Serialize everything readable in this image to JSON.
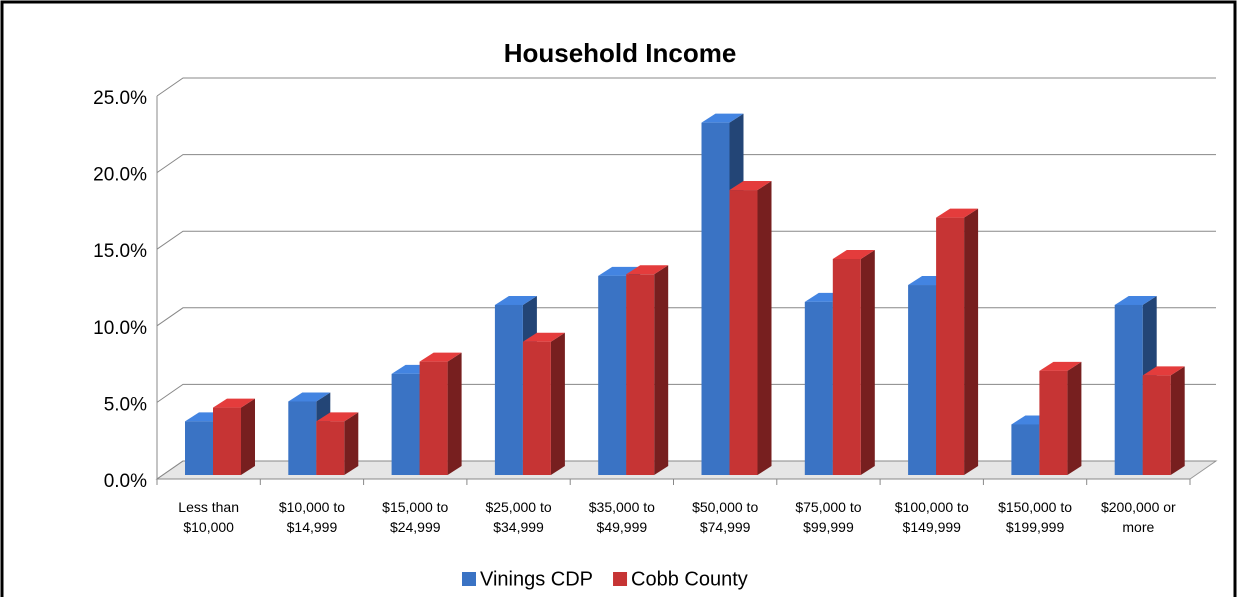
{
  "chart_data": {
    "type": "bar3d",
    "title": "Household Income",
    "categories": [
      "Less than $10,000",
      "$10,000 to $14,999",
      "$15,000 to $24,999",
      "$25,000 to $34,999",
      "$35,000 to $49,999",
      "$50,000 to $74,999",
      "$75,000 to $99,999",
      "$100,000 to $149,999",
      "$150,000 to $199,999",
      "$200,000 or more"
    ],
    "series": [
      {
        "name": "Vinings CDP",
        "color": "#3a73c4",
        "values": [
          3.5,
          4.8,
          6.6,
          11.1,
          13.0,
          23.0,
          11.3,
          12.4,
          3.3,
          11.1
        ]
      },
      {
        "name": "Cobb County",
        "color": "#c63434",
        "values": [
          4.4,
          3.5,
          7.4,
          8.7,
          13.1,
          18.6,
          14.1,
          16.8,
          6.8,
          6.5
        ]
      }
    ],
    "ylim": [
      0,
      25
    ],
    "yticks": [
      {
        "value": 0,
        "label": "0.0%"
      },
      {
        "value": 5,
        "label": "5.0%"
      },
      {
        "value": 10,
        "label": "10.0%"
      },
      {
        "value": 15,
        "label": "15.0%"
      },
      {
        "value": 20,
        "label": "20.0%"
      },
      {
        "value": 25,
        "label": "25.0%"
      }
    ],
    "grid": true,
    "legend": "bottom"
  }
}
